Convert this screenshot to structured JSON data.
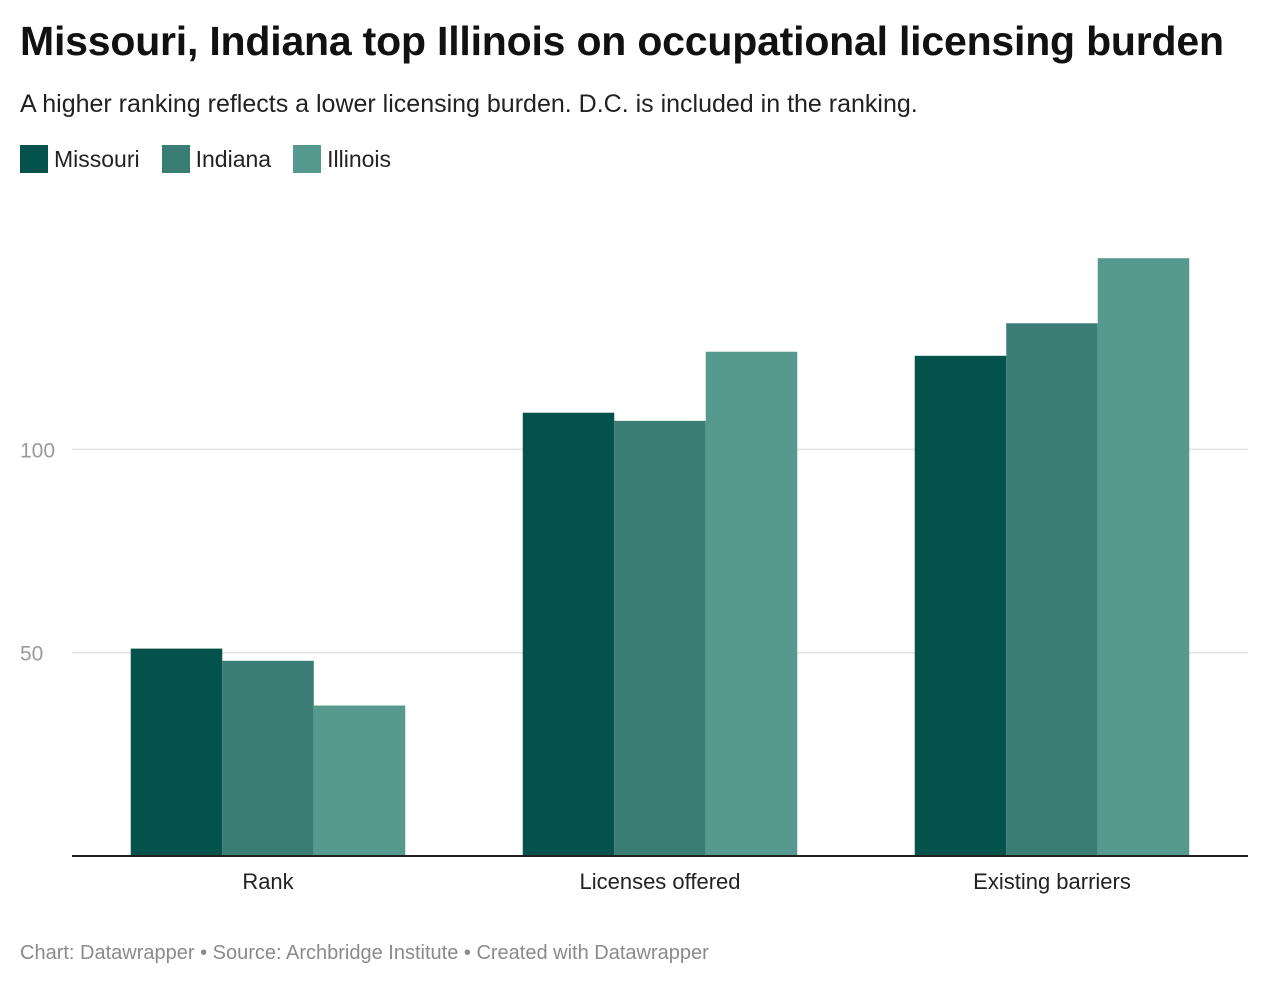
{
  "title": "Missouri, Indiana top Illinois on occupational licensing burden",
  "subtitle": "A higher ranking reflects a lower licensing burden. D.C. is included in the ranking.",
  "footer": "Chart: Datawrapper • Source: Archbridge Institute • Created with Datawrapper",
  "chart_data": {
    "type": "bar",
    "categories": [
      "Rank",
      "Licenses offered",
      "Existing barriers"
    ],
    "series": [
      {
        "name": "Missouri",
        "color": "#03524c",
        "values": [
          51,
          109,
          123
        ]
      },
      {
        "name": "Indiana",
        "color": "#3a7d74",
        "values": [
          48,
          107,
          131
        ]
      },
      {
        "name": "Illinois",
        "color": "#569a8f",
        "values": [
          37,
          124,
          147
        ]
      }
    ],
    "yticks": [
      50,
      100
    ],
    "ylim": [
      0,
      150
    ],
    "grid": true,
    "legend": "top-left"
  }
}
